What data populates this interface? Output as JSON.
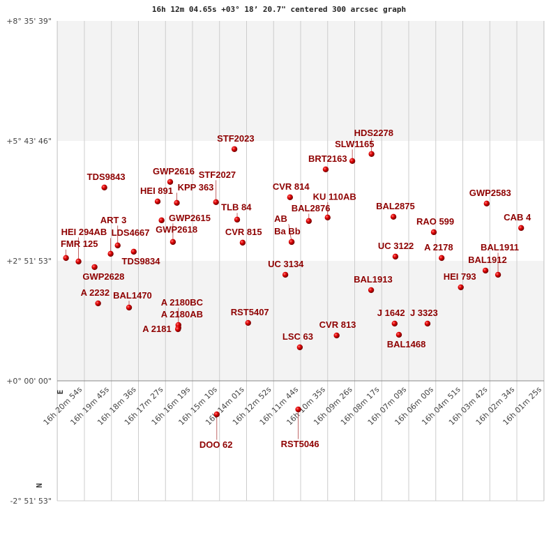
{
  "chart_data": {
    "type": "scatter",
    "title": "16h 12m 04.65s +03° 18’ 20.7\" centered 300 arcsec graph",
    "x_axis": {
      "quantity": "right ascension",
      "direction": "decreasing to the right",
      "tick_labels": [
        "16h 20m 54s",
        "16h 19m 45s",
        "16h 18m 36s",
        "16h 17m 27s",
        "16h 16m 19s",
        "16h 15m 10s",
        "16h 14m 01s",
        "16h 12m 52s",
        "16h 11m 44s",
        "16h 10m 35s",
        "16h 09m 26s",
        "16h 08m 17s",
        "16h 07m 09s",
        "16h 06m 00s",
        "16h 04m 51s",
        "16h 03m 42s",
        "16h 02m 34s",
        "16h 01m 25s"
      ]
    },
    "y_axis": {
      "quantity": "declination",
      "tick_labels": [
        "+8° 35' 39\"",
        "+5° 43' 46\"",
        "+2° 51' 53\"",
        "+0° 00' 00\"",
        "-2° 51' 53\""
      ]
    },
    "direction_markers": {
      "east": "E",
      "north": "N"
    },
    "grid": true,
    "colors": {
      "point": "#dd0000",
      "label": "#8e0000",
      "band": "#f3f3f3",
      "grid": "#cccccc"
    },
    "points": [
      {
        "name": "FMR 125",
        "ra": "16h 21m 41s",
        "dec": "+2°56'"
      },
      {
        "name": "HEI 294AB",
        "ra": "16h 21m 09s",
        "dec": "+2°51'"
      },
      {
        "name": "GWP2628",
        "ra": "16h 20m 28s",
        "dec": "+2°43'"
      },
      {
        "name": "LDS4667",
        "ra": "16h 19m 47s",
        "dec": "+3°02'"
      },
      {
        "name": "ART   3",
        "ra": "16h 19m 29s",
        "dec": "+3°14'"
      },
      {
        "name": "TDS9834",
        "ra": "16h 18m 48s",
        "dec": "+3°05'"
      },
      {
        "name": "A  2232",
        "ra": "16h 20m 19s",
        "dec": "+1°51'"
      },
      {
        "name": "BAL1470",
        "ra": "16h 19m 00s",
        "dec": "+1°45'"
      },
      {
        "name": "TDS9843",
        "ra": "16h 20m 03s",
        "dec": "+4°37'"
      },
      {
        "name": "GWP2616",
        "ra": "16h 17m 15s",
        "dec": "+4°45'"
      },
      {
        "name": "HEI 891",
        "ra": "16h 17m 47s",
        "dec": "+4°17'"
      },
      {
        "name": "KPP 363",
        "ra": "16h 16m 58s",
        "dec": "+4°15'"
      },
      {
        "name": "GWP2618",
        "ra": "16h 17m 37s",
        "dec": "+3°50'"
      },
      {
        "name": "GWP2615",
        "ra": "16h 17m 08s",
        "dec": "+3°19'"
      },
      {
        "name": "STF2027",
        "ra": "16h 15m 18s",
        "dec": "+4°16'"
      },
      {
        "name": "TLB  84",
        "ra": "16h 14m 24s",
        "dec": "+3°51'"
      },
      {
        "name": "CVR 815",
        "ra": "16h 14m 10s",
        "dec": "+3°18'"
      },
      {
        "name": "STF2023",
        "ra": "16h 14m 31s",
        "dec": "+5°32'"
      },
      {
        "name": "A  2180AB",
        "ra": "16h 16m 54s",
        "dec": "+1°20'"
      },
      {
        "name": "A  2180BC",
        "ra": "16h 16m 54s",
        "dec": "+1°16'"
      },
      {
        "name": "A  2181",
        "ra": "16h 16m 55s",
        "dec": "+1°14'"
      },
      {
        "name": "CVR 814",
        "ra": "16h 12m 09s",
        "dec": "+4°23'"
      },
      {
        "name": "BAL2876",
        "ra": "16h 11m 21s",
        "dec": "+3°49'"
      },
      {
        "name": "KU  110AB",
        "ra": "16h 10m 33s",
        "dec": "+3°54'"
      },
      {
        "name": "Ba  Bb",
        "ra": "16h 12m 05s",
        "dec": "+3°19'"
      },
      {
        "name": "AB",
        "ra": "16h 12m 05s",
        "dec": "+3°19'"
      },
      {
        "name": "BRT2163",
        "ra": "16h 10m 38s",
        "dec": "+5°03'"
      },
      {
        "name": "SLW1165",
        "ra": "16h 09m 30s",
        "dec": "+5°15'"
      },
      {
        "name": "HDS2278",
        "ra": "16h 08m 41s",
        "dec": "+5°25'"
      },
      {
        "name": "UC 3134",
        "ra": "16h 12m 21s",
        "dec": "+2°32'"
      },
      {
        "name": "RST5407",
        "ra": "16h 13m 56s",
        "dec": "+1°23'"
      },
      {
        "name": "LSC  63",
        "ra": "16h 11m 44s",
        "dec": "+0°48'"
      },
      {
        "name": "CVR 813",
        "ra": "16h 10m 10s",
        "dec": "+1°05'"
      },
      {
        "name": "BAL1913",
        "ra": "16h 08m 42s",
        "dec": "+2°10'"
      },
      {
        "name": "BAL2875",
        "ra": "16h 07m 45s",
        "dec": "+3°55'"
      },
      {
        "name": "UC 3122",
        "ra": "16h 07m 40s",
        "dec": "+2°58'"
      },
      {
        "name": "J  1642",
        "ra": "16h 07m 42s",
        "dec": "+1°22'"
      },
      {
        "name": "BAL1468",
        "ra": "16h 07m 31s",
        "dec": "+1°06'"
      },
      {
        "name": "J  3323",
        "ra": "16h 06m 18s",
        "dec": "+1°22'"
      },
      {
        "name": "RAO 599",
        "ra": "16h 06m 02s",
        "dec": "+3°33'"
      },
      {
        "name": "A  2178",
        "ra": "16h 05m 42s",
        "dec": "+2°56'"
      },
      {
        "name": "HEI 793",
        "ra": "16h 04m 53s",
        "dec": "+2°14'"
      },
      {
        "name": "GWP2583",
        "ra": "16h 03m 47s",
        "dec": "+4°14'"
      },
      {
        "name": "BAL1912",
        "ra": "16h 03m 50s",
        "dec": "+2°38'"
      },
      {
        "name": "BAL1911",
        "ra": "16h 03m 18s",
        "dec": "+2°32'"
      },
      {
        "name": "CAB   4",
        "ra": "16h 02m 19s",
        "dec": "+3°39'"
      },
      {
        "name": "DOO  62",
        "ra": "16h 15m 16s",
        "dec": "-0°48'",
        "label_side": "below"
      },
      {
        "name": "RST5046",
        "ra": "16h 11m 48s",
        "dec": "-0°41'",
        "label_side": "below"
      }
    ]
  }
}
